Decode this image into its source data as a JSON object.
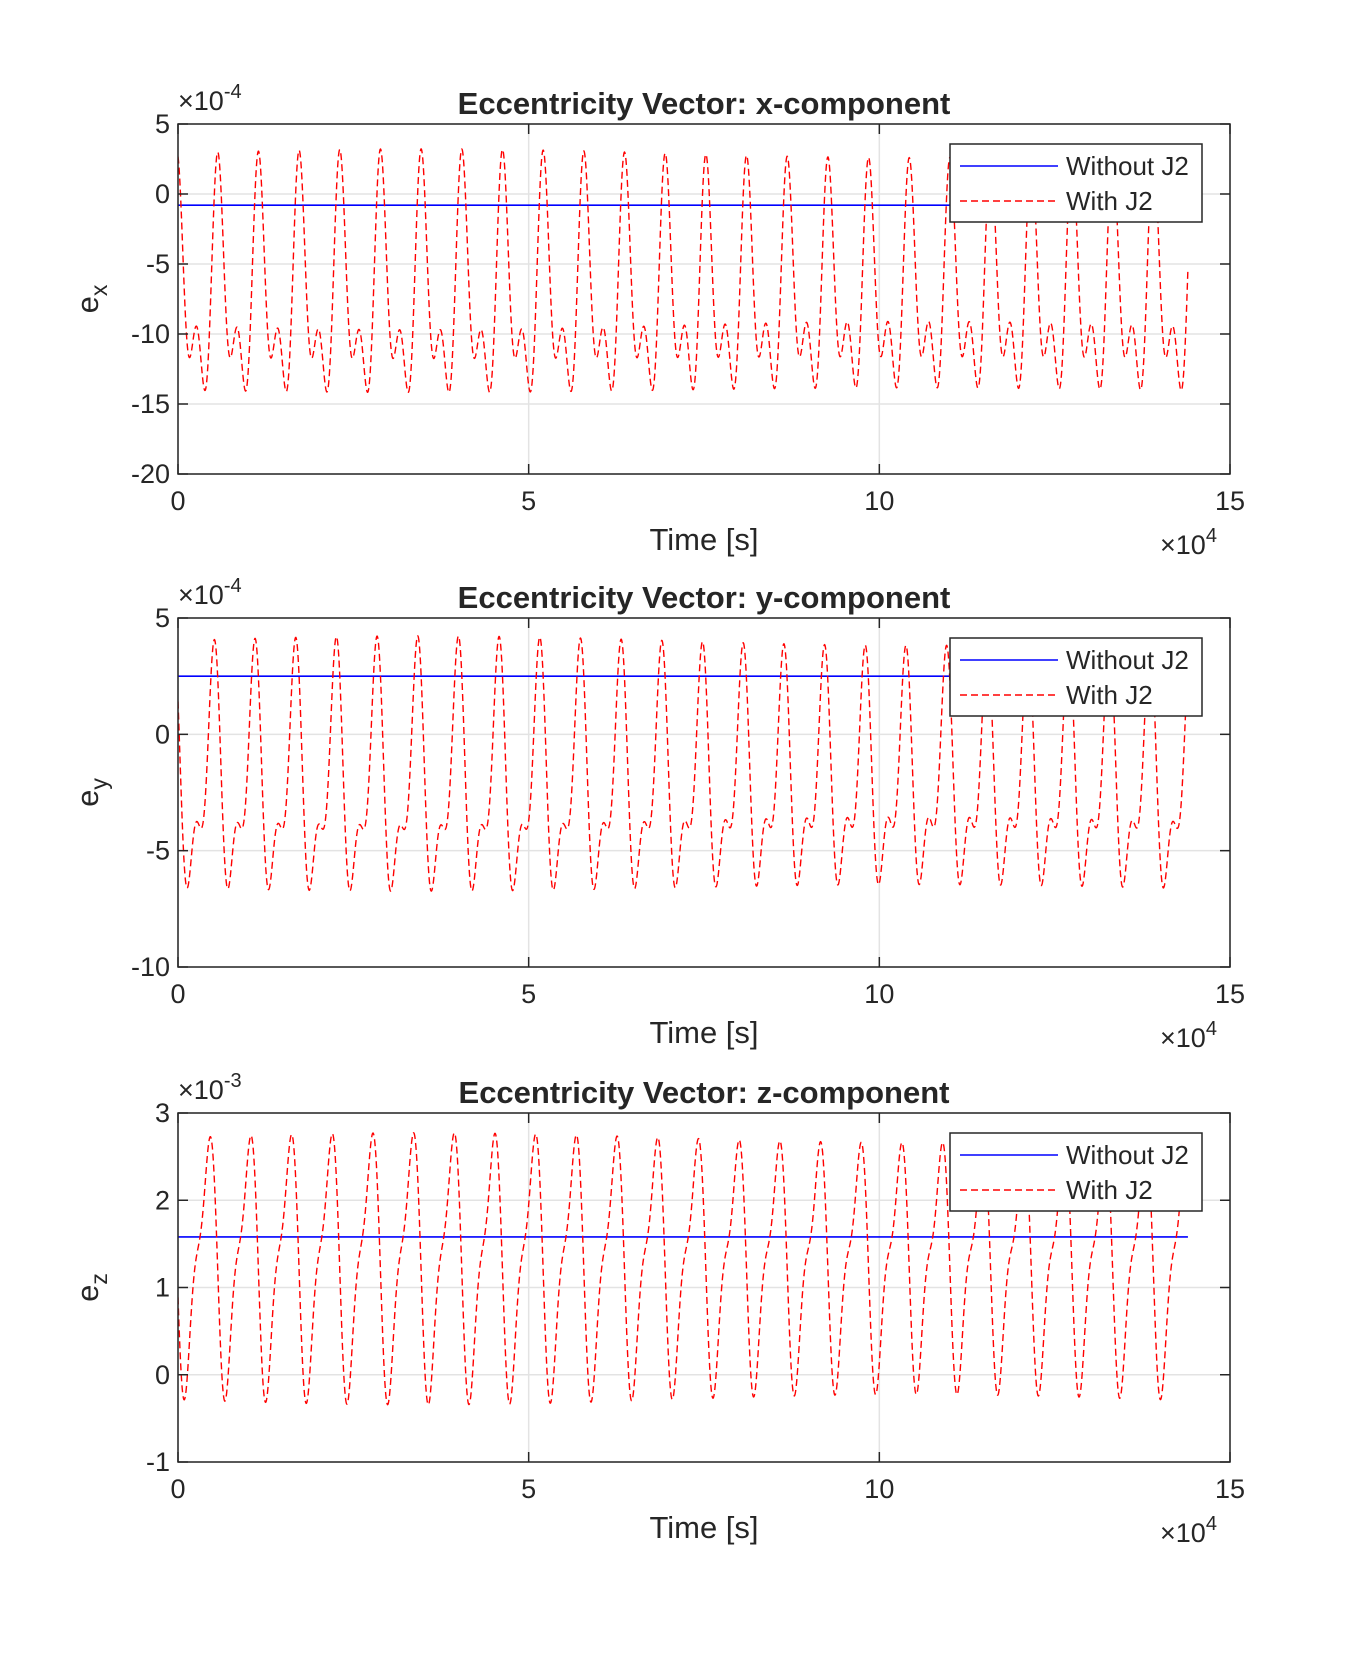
{
  "chart_data": [
    {
      "type": "line",
      "title": "Eccentricity Vector: x-component",
      "xlabel": "Time [s]",
      "ylabel": {
        "base": "e",
        "sub": "x"
      },
      "xlim": [
        0,
        150000
      ],
      "ylim": [
        -0.002,
        0.0005
      ],
      "x_exponent_label": {
        "base": "×10",
        "exp": "4"
      },
      "y_exponent_label": {
        "base": "×10",
        "exp": "-4"
      },
      "xticks": [
        0,
        5,
        10,
        15
      ],
      "yticks": [
        5,
        0,
        -5,
        -10,
        -15,
        -20
      ],
      "legend_position": "top-right",
      "grid": true,
      "series": [
        {
          "name": "Without J2",
          "style": "solid",
          "color": "#0000ff",
          "constant": -8e-05,
          "t_end": 144000
        },
        {
          "name": "With J2",
          "style": "dashed",
          "color": "#ff0000",
          "constant": -0.00075,
          "p1": 0.00063,
          "p2": 0.00042,
          "t_end": 144000
        }
      ]
    },
    {
      "type": "line",
      "title": "Eccentricity Vector: y-component",
      "xlabel": "Time [s]",
      "ylabel": {
        "base": "e",
        "sub": "y"
      },
      "xlim": [
        0,
        150000
      ],
      "ylim": [
        -0.001,
        0.0005
      ],
      "x_exponent_label": {
        "base": "×10",
        "exp": "4"
      },
      "y_exponent_label": {
        "base": "×10",
        "exp": "-4"
      },
      "xticks": [
        0,
        5,
        10,
        15
      ],
      "yticks": [
        5,
        0,
        -5,
        -10
      ],
      "legend_position": "top-right",
      "grid": true,
      "series": [
        {
          "name": "Without J2",
          "style": "solid",
          "color": "#0000ff",
          "constant": 0.00025,
          "t_end": 144000
        },
        {
          "name": "With J2",
          "style": "dashed",
          "color": "#ff0000",
          "constant": -0.00022,
          "p1": 0.00042,
          "p2": 0.00022,
          "t_end": 144000
        }
      ]
    },
    {
      "type": "line",
      "title": "Eccentricity Vector: z-component",
      "xlabel": "Time [s]",
      "ylabel": {
        "base": "e",
        "sub": "z"
      },
      "xlim": [
        0,
        150000
      ],
      "ylim": [
        -0.001,
        0.003
      ],
      "x_exponent_label": {
        "base": "×10",
        "exp": "4"
      },
      "y_exponent_label": {
        "base": "×10",
        "exp": "-3"
      },
      "xticks": [
        0,
        5,
        10,
        15
      ],
      "yticks": [
        3,
        2,
        1,
        0,
        -1
      ],
      "legend_position": "top-right",
      "grid": true,
      "series": [
        {
          "name": "Without J2",
          "style": "solid",
          "color": "#0000ff",
          "constant": 0.00158,
          "t_end": 144000
        },
        {
          "name": "With J2",
          "style": "dashed",
          "color": "#ff0000",
          "constant": 0.00128,
          "p1": 0.00128,
          "p2": 0.00045,
          "t_end": 144000
        }
      ]
    }
  ]
}
